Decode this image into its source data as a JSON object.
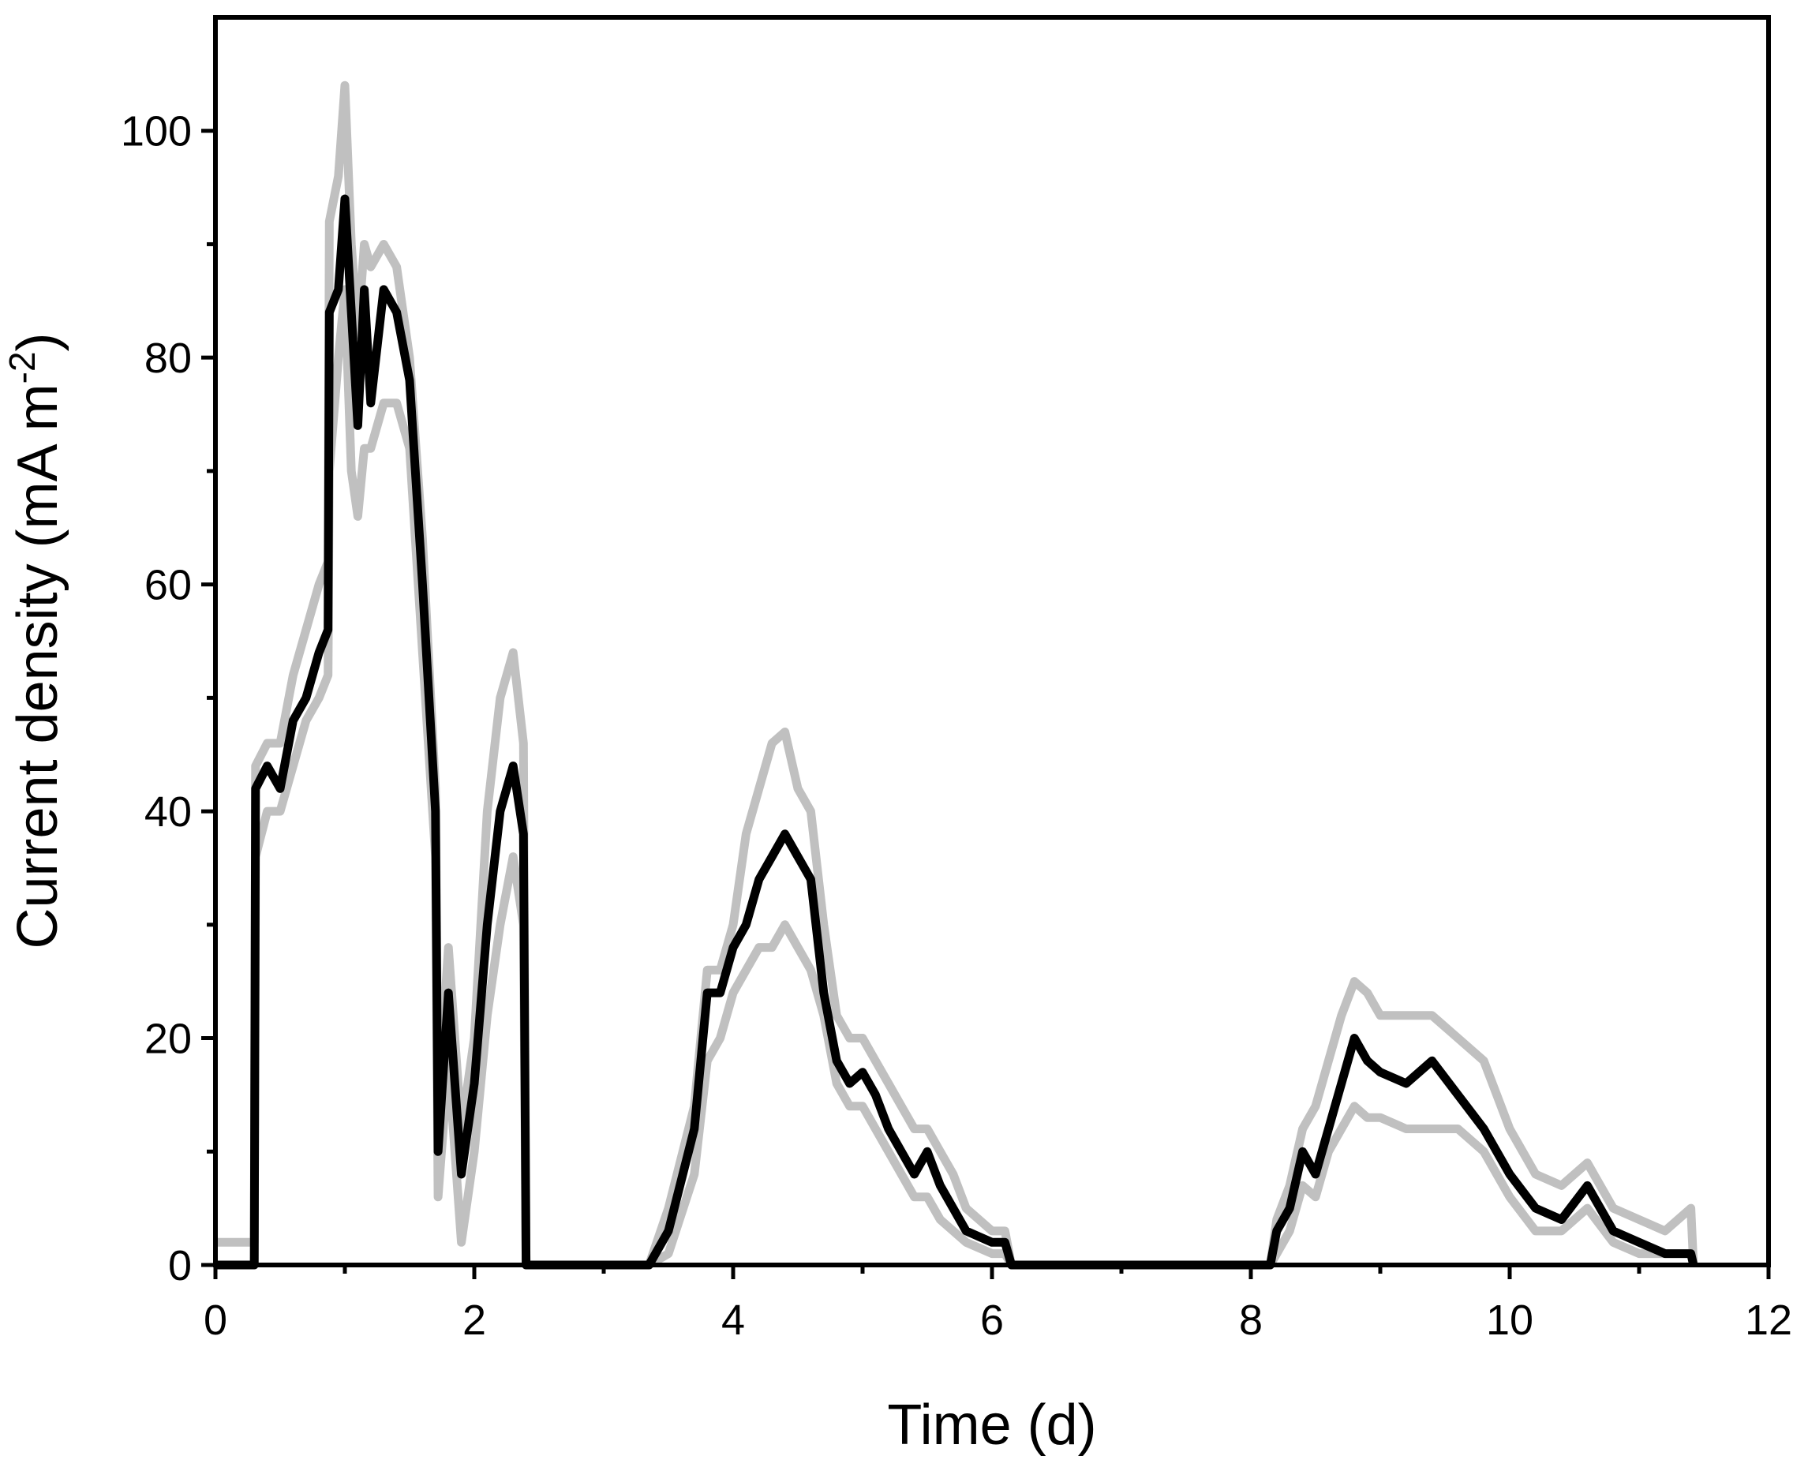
{
  "chart_data": {
    "type": "line",
    "x_label": "Time (d)",
    "y_label": "Current density (mA m",
    "y_label_sup": "-2",
    "y_label_end": ")",
    "x": [
      0,
      0.3,
      0.31,
      0.4,
      0.5,
      0.6,
      0.7,
      0.8,
      0.87,
      0.88,
      0.95,
      1.0,
      1.05,
      1.1,
      1.15,
      1.2,
      1.3,
      1.4,
      1.5,
      1.6,
      1.7,
      1.72,
      1.8,
      1.9,
      2.0,
      2.1,
      2.2,
      2.3,
      2.38,
      2.4,
      3.35,
      3.5,
      3.7,
      3.8,
      3.9,
      4.0,
      4.1,
      4.2,
      4.3,
      4.4,
      4.5,
      4.6,
      4.7,
      4.8,
      4.9,
      5.0,
      5.1,
      5.2,
      5.3,
      5.4,
      5.5,
      5.6,
      5.7,
      5.8,
      6.0,
      6.1,
      6.15,
      8.15,
      8.2,
      8.3,
      8.4,
      8.5,
      8.6,
      8.7,
      8.8,
      8.9,
      9.0,
      9.2,
      9.4,
      9.6,
      9.8,
      10.0,
      10.2,
      10.4,
      10.6,
      10.8,
      11.0,
      11.2,
      11.4,
      11.42
    ],
    "series": [
      {
        "color": "#c0c0c0",
        "values": [
          2,
          2,
          44,
          46,
          46,
          52,
          56,
          60,
          62,
          92,
          96,
          104,
          90,
          82,
          90,
          88,
          90,
          88,
          80,
          64,
          42,
          14,
          28,
          12,
          20,
          40,
          50,
          54,
          46,
          0,
          0,
          5,
          14,
          26,
          26,
          30,
          38,
          42,
          46,
          47,
          42,
          40,
          30,
          22,
          20,
          20,
          18,
          16,
          14,
          12,
          12,
          10,
          8,
          5,
          3,
          3,
          0,
          0,
          4,
          7,
          12,
          14,
          18,
          22,
          25,
          24,
          22,
          22,
          22,
          20,
          18,
          12,
          8,
          7,
          9,
          5,
          4,
          3,
          5,
          0
        ]
      },
      {
        "color": "#c0c0c0",
        "values": [
          0,
          0,
          36,
          40,
          40,
          44,
          48,
          50,
          52,
          70,
          80,
          86,
          70,
          66,
          72,
          72,
          76,
          76,
          72,
          54,
          36,
          6,
          18,
          2,
          10,
          22,
          30,
          36,
          30,
          0,
          0,
          1,
          8,
          18,
          20,
          24,
          26,
          28,
          28,
          30,
          28,
          26,
          22,
          16,
          14,
          14,
          12,
          10,
          8,
          6,
          6,
          4,
          3,
          2,
          1,
          1,
          0,
          0,
          1,
          3,
          7,
          6,
          10,
          12,
          14,
          13,
          13,
          12,
          12,
          12,
          10,
          6,
          3,
          3,
          5,
          2,
          1,
          1,
          1,
          0
        ]
      },
      {
        "color": "#000000",
        "values": [
          0,
          0,
          42,
          44,
          42,
          48,
          50,
          54,
          56,
          84,
          86,
          94,
          84,
          74,
          86,
          76,
          86,
          84,
          78,
          60,
          40,
          10,
          24,
          8,
          16,
          30,
          40,
          44,
          38,
          0,
          0,
          3,
          12,
          24,
          24,
          28,
          30,
          34,
          36,
          38,
          36,
          34,
          24,
          18,
          16,
          17,
          15,
          12,
          10,
          8,
          10,
          7,
          5,
          3,
          2,
          2,
          0,
          0,
          3,
          5,
          10,
          8,
          12,
          16,
          20,
          18,
          17,
          16,
          18,
          15,
          12,
          8,
          5,
          4,
          7,
          3,
          2,
          1,
          1,
          0
        ]
      }
    ],
    "xlim": [
      0,
      12
    ],
    "xticks": [
      0,
      2,
      4,
      6,
      8,
      10,
      12
    ],
    "ylim": [
      0,
      110
    ],
    "yticks": [
      0,
      20,
      40,
      60,
      80,
      100
    ]
  }
}
